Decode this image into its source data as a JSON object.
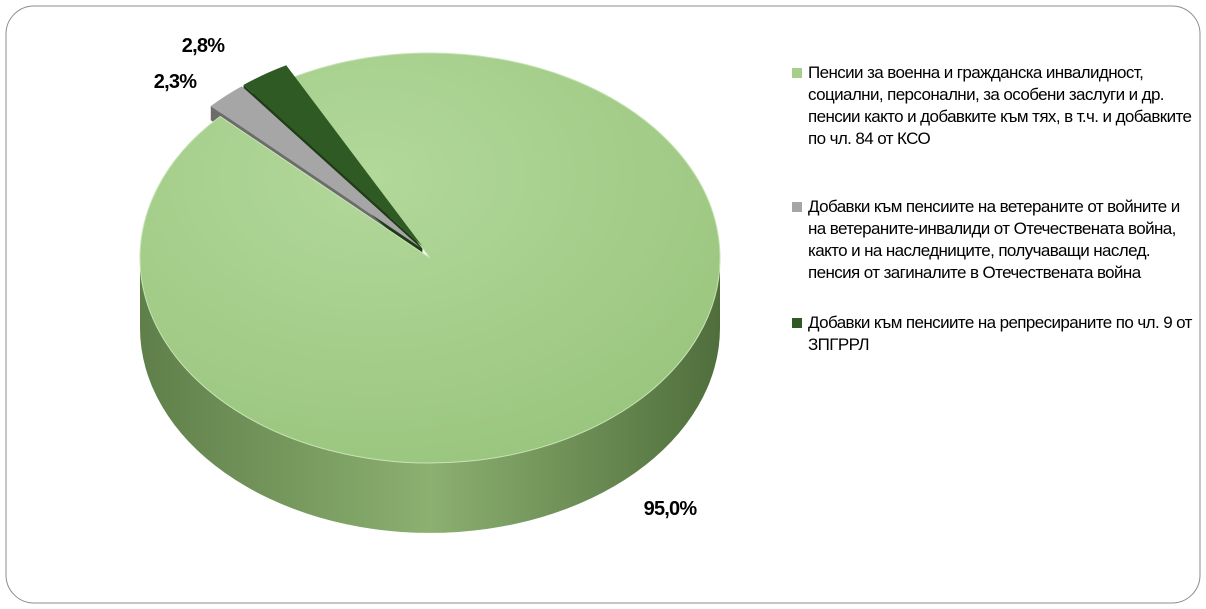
{
  "chart_data": {
    "type": "pie",
    "categories": [
      "Пенсии за военна и гражданска инвалидност, социални, персонални, за особени заслуги и др. пенсии както и добавките към тях, в т.ч. и добавките по чл. 84 от КСО",
      "Добавки към пенсиите на ветераните от войните и на ветераните-инвалиди от Отечествената война, както и на наследниците, получаващи наслед. пенсия от загиналите в Отечествената война",
      "Добавки към пенсиите на репресираните по чл. 9 от ЗПГРРЛ"
    ],
    "values": [
      95.0,
      2.3,
      2.8
    ],
    "value_labels": [
      "95,0%",
      "2,3%",
      "2,8%"
    ],
    "colors": [
      "#a6cf8b",
      "#a6a6a6",
      "#2f5a24"
    ],
    "legend": "right"
  }
}
